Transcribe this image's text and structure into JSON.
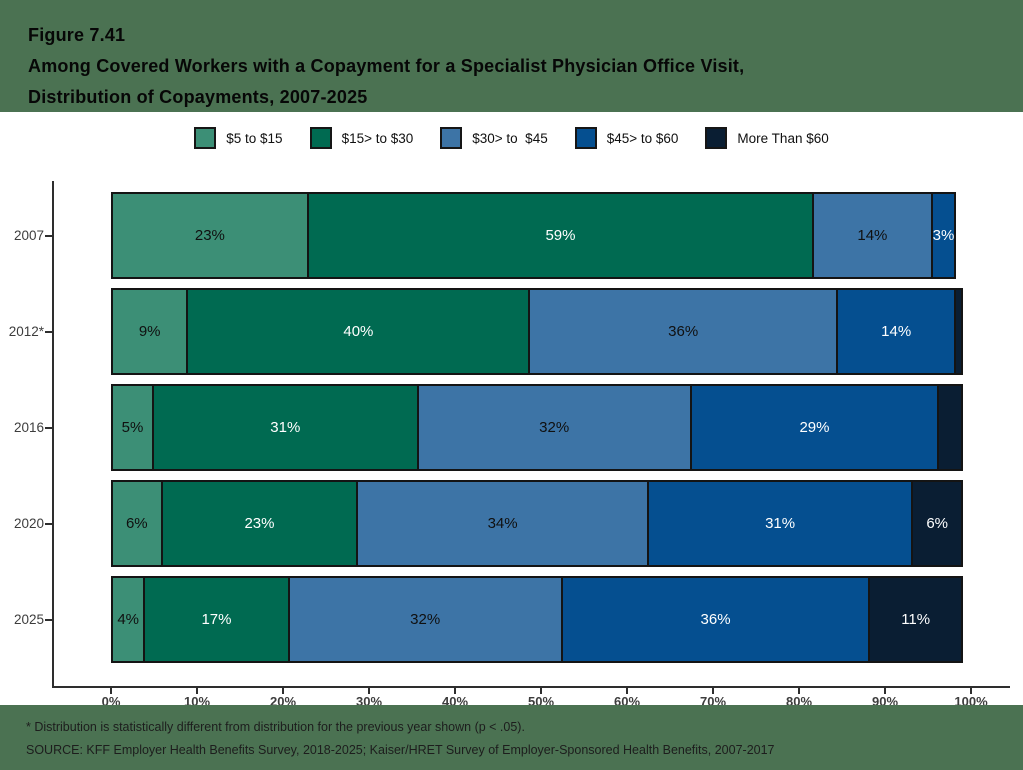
{
  "title": {
    "line1": "Figure 7.41",
    "line2": "Among Covered Workers with a Copayment for a Specialist Physician Office Visit,",
    "line3": "Distribution of Copayments, 2007-2025"
  },
  "colors": {
    "band_green": "#4b7252",
    "segment_border": "#141414",
    "axis": "#2e2e2e",
    "tick_text": "#3d3d3d"
  },
  "chart_data": {
    "type": "bar",
    "orientation": "horizontal-stacked",
    "title": "Among Covered Workers with a Copayment for a Specialist Physician Office Visit, Distribution of Copayments, 2007-2025",
    "categories": [
      "2007",
      "2012*",
      "2016",
      "2020",
      "2025"
    ],
    "series": [
      {
        "name": "$5 to $15",
        "color": "#3c8f76",
        "label_color": "#101010",
        "values": [
          23,
          9,
          5,
          6,
          4
        ]
      },
      {
        "name": "$15> to $30",
        "color": "#006a51",
        "label_color": "#ffffff",
        "values": [
          59,
          40,
          31,
          23,
          17
        ]
      },
      {
        "name": "$30> to  $45",
        "color": "#3d74a6",
        "label_color": "#101010",
        "values": [
          14,
          36,
          32,
          34,
          32
        ]
      },
      {
        "name": "$45> to $60",
        "color": "#054f90",
        "label_color": "#ffffff",
        "values": [
          3,
          14,
          29,
          31,
          36
        ]
      },
      {
        "name": "More Than $60",
        "color": "#0a1e33",
        "label_color": "#ffffff",
        "values": [
          0,
          1,
          3,
          6,
          11
        ]
      }
    ],
    "labels": [
      [
        "23%",
        "59%",
        "14%",
        "3%",
        ""
      ],
      [
        "9%",
        "40%",
        "36%",
        "14%",
        ""
      ],
      [
        "5%",
        "31%",
        "32%",
        "29%",
        ""
      ],
      [
        "6%",
        "23%",
        "34%",
        "31%",
        "6%"
      ],
      [
        "4%",
        "17%",
        "32%",
        "36%",
        "11%"
      ]
    ],
    "x_ticks": [
      "0%",
      "10%",
      "20%",
      "30%",
      "40%",
      "50%",
      "60%",
      "70%",
      "80%",
      "90%",
      "100%"
    ],
    "xlim": [
      0,
      100
    ],
    "grid": false,
    "legend_position": "top-center"
  },
  "footnote": "* Distribution is statistically different from distribution for the previous year shown (p < .05).",
  "source": "SOURCE: KFF Employer Health Benefits Survey, 2018-2025; Kaiser/HRET Survey of Employer-Sponsored Health Benefits, 2007-2017"
}
